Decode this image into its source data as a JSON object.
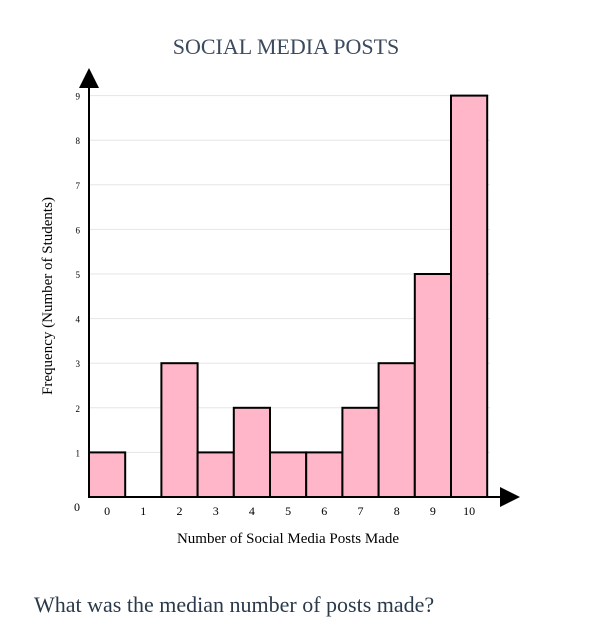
{
  "colors": {
    "bar_fill": "#ffb6c8",
    "bar_stroke": "#000000",
    "grid": "#e5e5e5",
    "axis": "#000000",
    "title": "#3b4a5e",
    "question": "#2a3a4a"
  },
  "chart_data": {
    "type": "bar",
    "title": "SOCIAL MEDIA POSTS",
    "xlabel": "Number of Social Media Posts Made",
    "ylabel": "Frequency (Number of Students)",
    "categories": [
      "0",
      "1",
      "2",
      "3",
      "4",
      "5",
      "6",
      "7",
      "8",
      "9",
      "10"
    ],
    "values": [
      1,
      0,
      3,
      1,
      2,
      1,
      1,
      2,
      3,
      5,
      9
    ],
    "y_ticks": [
      "0",
      "1",
      "2",
      "3",
      "4",
      "5",
      "6",
      "7",
      "8",
      "9"
    ],
    "ylim": [
      0,
      9
    ],
    "grid": true
  },
  "question": {
    "text": "What was the median number of posts made?"
  }
}
